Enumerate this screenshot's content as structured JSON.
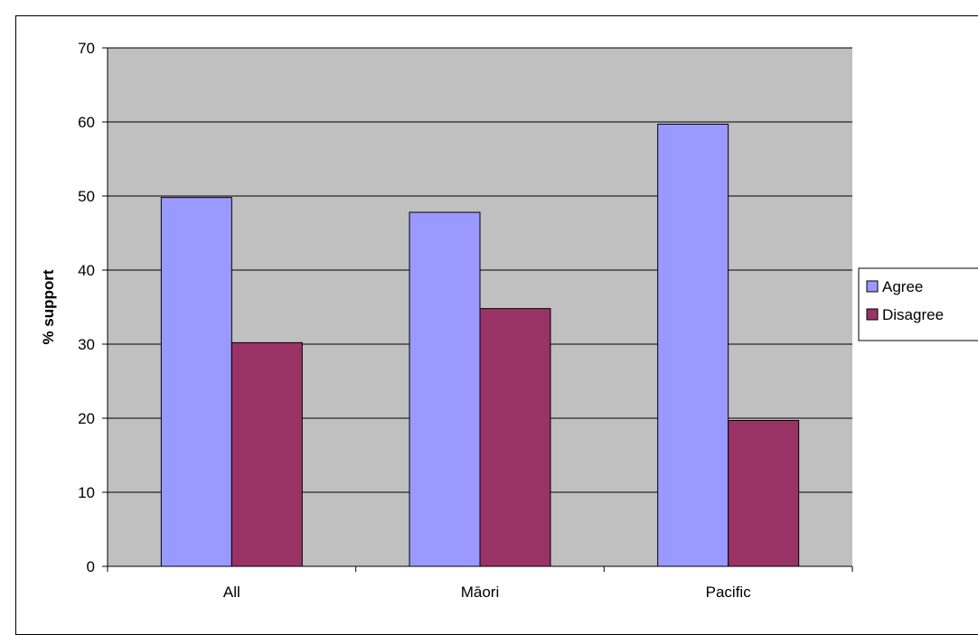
{
  "chart_data": {
    "type": "bar",
    "categories": [
      "All",
      "Māori",
      "Pacific"
    ],
    "series": [
      {
        "name": "Agree",
        "values": [
          49.8,
          47.8,
          59.7
        ],
        "color": "#9999ff"
      },
      {
        "name": "Disagree",
        "values": [
          30.2,
          34.8,
          19.7
        ],
        "color": "#993366"
      }
    ],
    "ylabel": "% support",
    "xlabel": "",
    "ylim": [
      0,
      70
    ],
    "yticks": [
      0,
      10,
      20,
      30,
      40,
      50,
      60,
      70
    ],
    "grid": true,
    "plot_background": "#c0c0c0",
    "legend_position": "right"
  }
}
